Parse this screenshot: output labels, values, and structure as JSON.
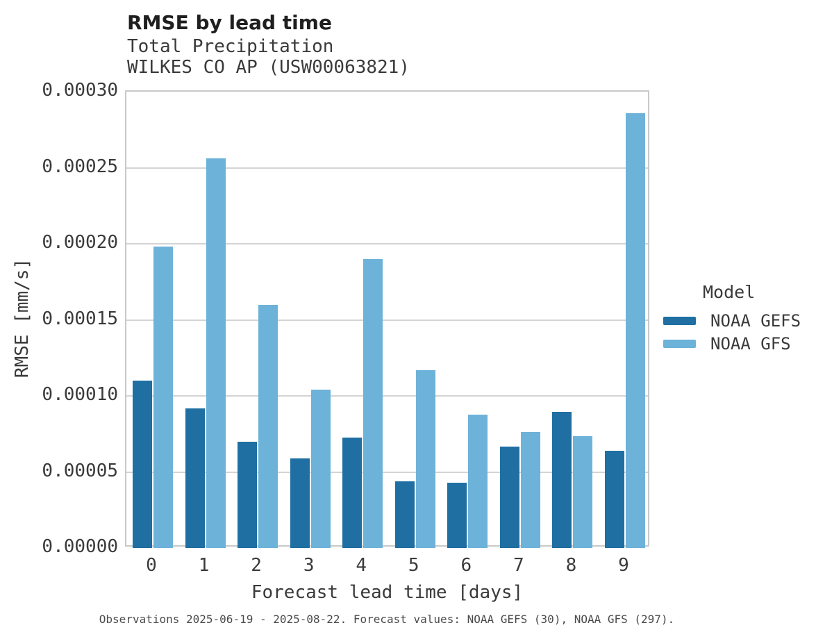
{
  "header": {
    "title": "RMSE by lead time",
    "subtitle_line1": "Total Precipitation",
    "subtitle_line2": "WILKES CO AP (USW00063821)"
  },
  "axes": {
    "y_title": "RMSE [mm/s]",
    "x_title": "Forecast lead time [days]"
  },
  "legend": {
    "title": "Model",
    "items": [
      {
        "label": "NOAA GEFS",
        "color": "#1f6fa3"
      },
      {
        "label": "NOAA GFS",
        "color": "#6db2d9"
      }
    ]
  },
  "caption": "Observations 2025-06-19 - 2025-08-22. Forecast values: NOAA GEFS (30), NOAA GFS (297).",
  "colors": {
    "noaa_gefs": "#1f6fa3",
    "noaa_gfs": "#6db2d9",
    "gridline": "#d4d4d4",
    "plot_border": "#c9c9c9",
    "title_text": "#1f1f1f",
    "axis_text": "#3a3a3a"
  },
  "chart_data": {
    "type": "bar",
    "title": "RMSE by lead time",
    "subtitle": [
      "Total Precipitation",
      "WILKES CO AP (USW00063821)"
    ],
    "xlabel": "Forecast lead time [days]",
    "ylabel": "RMSE [mm/s]",
    "categories": [
      "0",
      "1",
      "2",
      "3",
      "4",
      "5",
      "6",
      "7",
      "8",
      "9"
    ],
    "series": [
      {
        "name": "NOAA GEFS",
        "color": "#1f6fa3",
        "values": [
          0.00011,
          9.2e-05,
          7e-05,
          5.9e-05,
          7.25e-05,
          4.4e-05,
          4.28e-05,
          6.65e-05,
          8.95e-05,
          6.4e-05
        ]
      },
      {
        "name": "NOAA GFS",
        "color": "#6db2d9",
        "values": [
          0.000198,
          0.000256,
          0.00016,
          0.000104,
          0.00019,
          0.000117,
          8.75e-05,
          7.62e-05,
          7.37e-05,
          0.000286
        ]
      }
    ],
    "ylim": [
      0,
      0.0003
    ],
    "yticks": [
      {
        "value": 0.0,
        "label": "0.00000"
      },
      {
        "value": 5e-05,
        "label": "0.00005"
      },
      {
        "value": 0.0001,
        "label": "0.00010"
      },
      {
        "value": 0.00015,
        "label": "0.00015"
      },
      {
        "value": 0.0002,
        "label": "0.00020"
      },
      {
        "value": 0.00025,
        "label": "0.00025"
      },
      {
        "value": 0.0003,
        "label": "0.00030"
      }
    ],
    "grid": "horizontal",
    "legend_title": "Model",
    "legend_position": "right",
    "caption": "Observations 2025-06-19 - 2025-08-22. Forecast values: NOAA GEFS (30), NOAA GFS (297)."
  }
}
